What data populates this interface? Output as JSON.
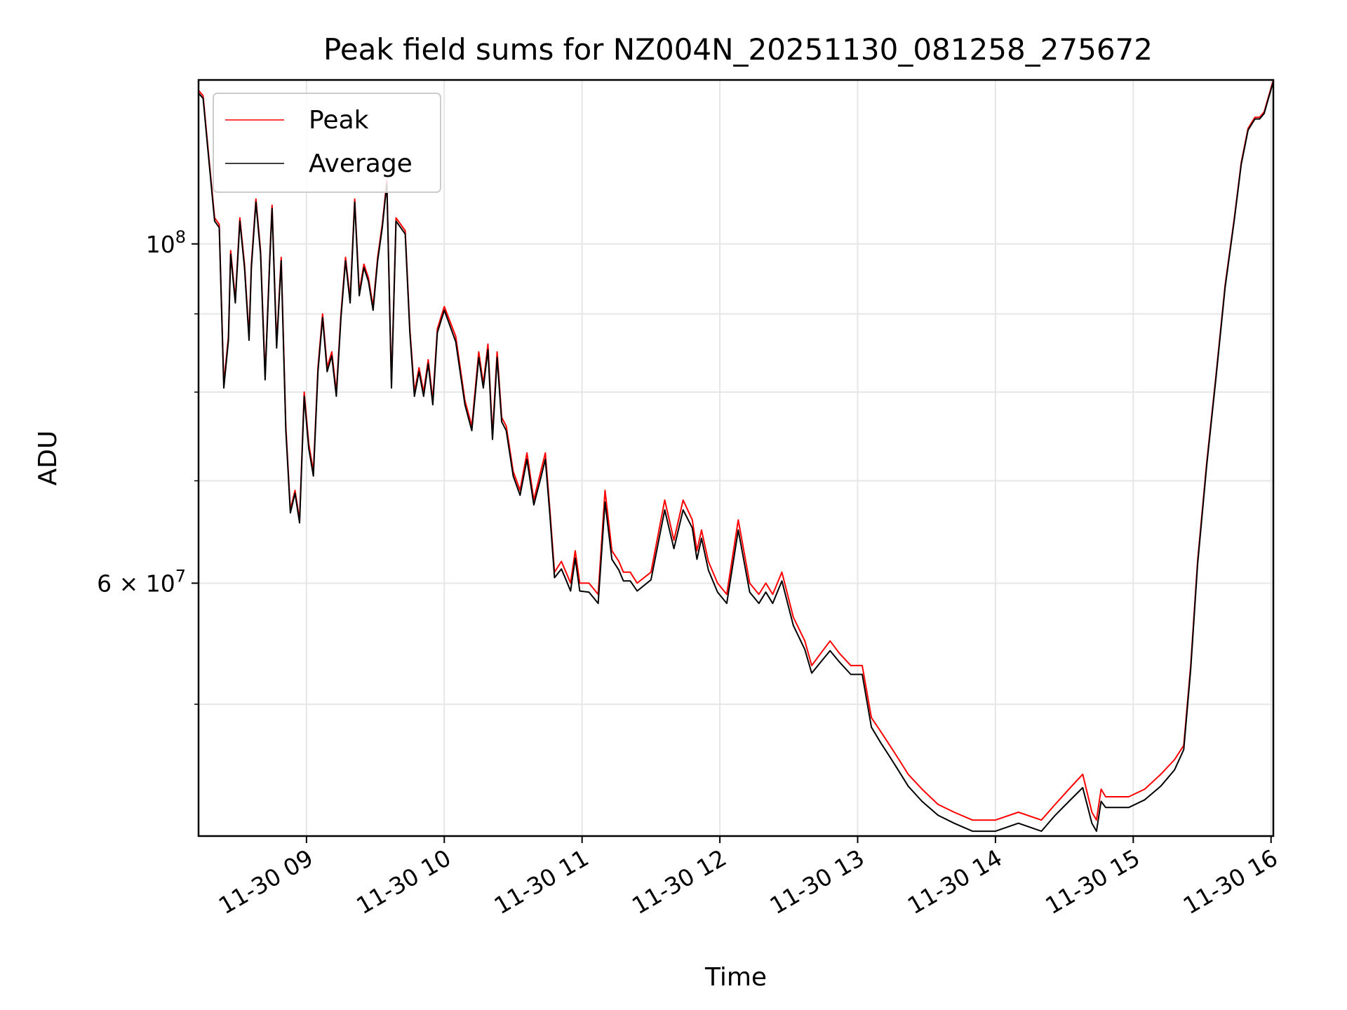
{
  "chart_data": {
    "type": "line",
    "title": "Peak field sums for NZ004N_20251130_081258_275672",
    "xlabel": "Time",
    "ylabel": "ADU",
    "yscale": "log",
    "xlim": [
      "2025-11-30 08:13",
      "2025-11-30 16:01"
    ],
    "ylim": [
      41000000,
      128000000
    ],
    "xtick_labels": [
      "11-30 09",
      "11-30 10",
      "11-30 11",
      "11-30 12",
      "11-30 13",
      "11-30 14",
      "11-30 15",
      "11-30 16"
    ],
    "xtick_times": [
      "2025-11-30 09:00",
      "2025-11-30 10:00",
      "2025-11-30 11:00",
      "2025-11-30 12:00",
      "2025-11-30 13:00",
      "2025-11-30 14:00",
      "2025-11-30 15:00",
      "2025-11-30 16:00"
    ],
    "ytick_labels": [
      {
        "value": 100000000,
        "base": "10",
        "exp": "8"
      },
      {
        "value": 60000000,
        "base": "6 × 10",
        "exp": "7"
      }
    ],
    "y_minor_ticks": [
      50000000,
      70000000,
      80000000,
      90000000
    ],
    "grid": true,
    "legend_position": "top-left",
    "series": [
      {
        "name": "Peak",
        "color": "#ff0000",
        "x": [
          "08:13",
          "08:15",
          "08:17",
          "08:20",
          "08:22",
          "08:24",
          "08:26",
          "08:27",
          "08:29",
          "08:31",
          "08:33",
          "08:35",
          "08:36",
          "08:38",
          "08:40",
          "08:42",
          "08:44",
          "08:45",
          "08:47",
          "08:49",
          "08:51",
          "08:53",
          "08:55",
          "08:57",
          "08:59",
          "09:01",
          "09:03",
          "09:05",
          "09:07",
          "09:09",
          "09:11",
          "09:13",
          "09:15",
          "09:17",
          "09:19",
          "09:21",
          "09:23",
          "09:25",
          "09:27",
          "09:29",
          "09:31",
          "09:33",
          "09:35",
          "09:37",
          "09:39",
          "09:41",
          "09:43",
          "09:45",
          "09:47",
          "09:49",
          "09:51",
          "09:53",
          "09:55",
          "09:57",
          "10:00",
          "10:05",
          "10:09",
          "10:12",
          "10:15",
          "10:17",
          "10:19",
          "10:21",
          "10:23",
          "10:25",
          "10:27",
          "10:30",
          "10:33",
          "10:36",
          "10:39",
          "10:42",
          "10:44",
          "10:46",
          "10:48",
          "10:51",
          "10:53",
          "10:55",
          "10:57",
          "10:59",
          "11:03",
          "11:07",
          "11:10",
          "11:13",
          "11:16",
          "11:18",
          "11:21",
          "11:24",
          "11:30",
          "11:36",
          "11:40",
          "11:44",
          "11:48",
          "11:50",
          "11:52",
          "11:55",
          "11:59",
          "12:03",
          "12:08",
          "12:13",
          "12:17",
          "12:20",
          "12:23",
          "12:27",
          "12:32",
          "12:37",
          "12:40",
          "12:44",
          "12:48",
          "12:52",
          "12:57",
          "13:02",
          "13:06",
          "13:10",
          "13:14",
          "13:18",
          "13:22",
          "13:28",
          "13:35",
          "13:42",
          "13:50",
          "14:00",
          "14:10",
          "14:20",
          "14:26",
          "14:32",
          "14:38",
          "14:42",
          "14:44",
          "14:46",
          "14:48",
          "14:52",
          "14:58",
          "15:05",
          "15:12",
          "15:18",
          "15:22",
          "15:25",
          "15:28",
          "15:32",
          "15:36",
          "15:40",
          "15:44",
          "15:47",
          "15:50",
          "15:53",
          "15:55",
          "15:57",
          "15:59",
          "16:01"
        ],
        "y": [
          126000000,
          125000000,
          116000000,
          104000000,
          103000000,
          81000000,
          87000000,
          99000000,
          92000000,
          104000000,
          97000000,
          87000000,
          97000000,
          107000000,
          99000000,
          82000000,
          98000000,
          106000000,
          86000000,
          98000000,
          76000000,
          67000000,
          69000000,
          66000000,
          80000000,
          74000000,
          71000000,
          83000000,
          90000000,
          83000000,
          85000000,
          80000000,
          90000000,
          98000000,
          92000000,
          107000000,
          93000000,
          97000000,
          95000000,
          91000000,
          98000000,
          103000000,
          110000000,
          81000000,
          104000000,
          103000000,
          102000000,
          88000000,
          80000000,
          83000000,
          80000000,
          84000000,
          79000000,
          88000000,
          91000000,
          87000000,
          79000000,
          76000000,
          85000000,
          81000000,
          86000000,
          75000000,
          85000000,
          77000000,
          76000000,
          71000000,
          69000000,
          73000000,
          68000000,
          71000000,
          73000000,
          67000000,
          61000000,
          62000000,
          61000000,
          60000000,
          63000000,
          60000000,
          60000000,
          59000000,
          69000000,
          63000000,
          62000000,
          61000000,
          61000000,
          60000000,
          61000000,
          68000000,
          64000000,
          68000000,
          66000000,
          63000000,
          65000000,
          62000000,
          60000000,
          59000000,
          66000000,
          60000000,
          59000000,
          60000000,
          59000000,
          61000000,
          57000000,
          55000000,
          53000000,
          54000000,
          55000000,
          54000000,
          53000000,
          53000000,
          49000000,
          48000000,
          47000000,
          46000000,
          45000000,
          44000000,
          43000000,
          42500000,
          42000000,
          42000000,
          42500000,
          42000000,
          43000000,
          44000000,
          45000000,
          42500000,
          42000000,
          44000000,
          43500000,
          43500000,
          43500000,
          44000000,
          45000000,
          46000000,
          47000000,
          53000000,
          62000000,
          72000000,
          82000000,
          94000000,
          104000000,
          113000000,
          119000000,
          121000000,
          121000000,
          122000000,
          125000000,
          128000000
        ]
      },
      {
        "name": "Average",
        "color": "#000000",
        "x": [
          "08:13",
          "08:15",
          "08:17",
          "08:20",
          "08:22",
          "08:24",
          "08:26",
          "08:27",
          "08:29",
          "08:31",
          "08:33",
          "08:35",
          "08:36",
          "08:38",
          "08:40",
          "08:42",
          "08:44",
          "08:45",
          "08:47",
          "08:49",
          "08:51",
          "08:53",
          "08:55",
          "08:57",
          "08:59",
          "09:01",
          "09:03",
          "09:05",
          "09:07",
          "09:09",
          "09:11",
          "09:13",
          "09:15",
          "09:17",
          "09:19",
          "09:21",
          "09:23",
          "09:25",
          "09:27",
          "09:29",
          "09:31",
          "09:33",
          "09:35",
          "09:37",
          "09:39",
          "09:41",
          "09:43",
          "09:45",
          "09:47",
          "09:49",
          "09:51",
          "09:53",
          "09:55",
          "09:57",
          "10:00",
          "10:05",
          "10:09",
          "10:12",
          "10:15",
          "10:17",
          "10:19",
          "10:21",
          "10:23",
          "10:25",
          "10:27",
          "10:30",
          "10:33",
          "10:36",
          "10:39",
          "10:42",
          "10:44",
          "10:46",
          "10:48",
          "10:51",
          "10:53",
          "10:55",
          "10:57",
          "10:59",
          "11:03",
          "11:07",
          "11:10",
          "11:13",
          "11:16",
          "11:18",
          "11:21",
          "11:24",
          "11:30",
          "11:36",
          "11:40",
          "11:44",
          "11:48",
          "11:50",
          "11:52",
          "11:55",
          "11:59",
          "12:03",
          "12:08",
          "12:13",
          "12:17",
          "12:20",
          "12:23",
          "12:27",
          "12:32",
          "12:37",
          "12:40",
          "12:44",
          "12:48",
          "12:52",
          "12:57",
          "13:02",
          "13:06",
          "13:10",
          "13:14",
          "13:18",
          "13:22",
          "13:28",
          "13:35",
          "13:42",
          "13:50",
          "14:00",
          "14:10",
          "14:20",
          "14:26",
          "14:32",
          "14:38",
          "14:42",
          "14:44",
          "14:46",
          "14:48",
          "14:52",
          "14:58",
          "15:05",
          "15:12",
          "15:18",
          "15:22",
          "15:25",
          "15:28",
          "15:32",
          "15:36",
          "15:40",
          "15:44",
          "15:47",
          "15:50",
          "15:53",
          "15:55",
          "15:57",
          "15:59",
          "16:01"
        ],
        "y": [
          125500000,
          124500000,
          115500000,
          103500000,
          102500000,
          80500000,
          86500000,
          98500000,
          91500000,
          103500000,
          96500000,
          86500000,
          96500000,
          106500000,
          98500000,
          81500000,
          97500000,
          105500000,
          85500000,
          97500000,
          75500000,
          66700000,
          68700000,
          65700000,
          79500000,
          73500000,
          70500000,
          82500000,
          89500000,
          82500000,
          84500000,
          79500000,
          89500000,
          97500000,
          91500000,
          106500000,
          92500000,
          96500000,
          94500000,
          90500000,
          97500000,
          102500000,
          109500000,
          80500000,
          103500000,
          102500000,
          101500000,
          87500000,
          79500000,
          82500000,
          79500000,
          83500000,
          78500000,
          87500000,
          90500000,
          86300000,
          78500000,
          75500000,
          84300000,
          80500000,
          85300000,
          74500000,
          84300000,
          76500000,
          75500000,
          70500000,
          68500000,
          72300000,
          67500000,
          70300000,
          72300000,
          66500000,
          60500000,
          61300000,
          60300000,
          59300000,
          62300000,
          59300000,
          59200000,
          58200000,
          67800000,
          62200000,
          61200000,
          60200000,
          60200000,
          59300000,
          60300000,
          67000000,
          63200000,
          67000000,
          65200000,
          62200000,
          64200000,
          61200000,
          59200000,
          58200000,
          65000000,
          59200000,
          58200000,
          59200000,
          58200000,
          60200000,
          56300000,
          54300000,
          52400000,
          53300000,
          54200000,
          53300000,
          52300000,
          52300000,
          48300000,
          47200000,
          46200000,
          45200000,
          44200000,
          43200000,
          42300000,
          41800000,
          41300000,
          41300000,
          41800000,
          41300000,
          42300000,
          43200000,
          44100000,
          41800000,
          41300000,
          43200000,
          42800000,
          42800000,
          42800000,
          43300000,
          44200000,
          45300000,
          46700000,
          52700000,
          61700000,
          71700000,
          81700000,
          93700000,
          103700000,
          112700000,
          118700000,
          120700000,
          120700000,
          121700000,
          124700000,
          127700000
        ]
      }
    ]
  }
}
